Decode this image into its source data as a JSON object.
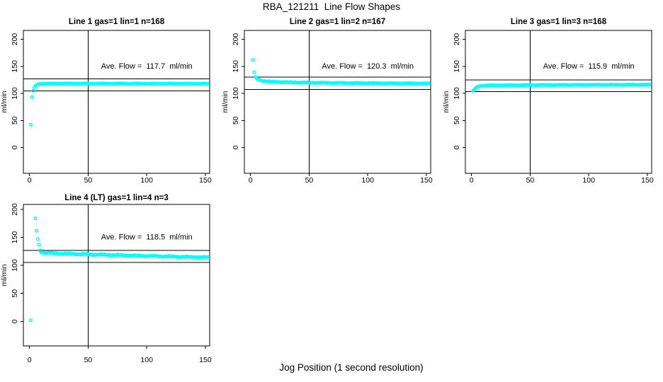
{
  "figure": {
    "main_title": "RBA_121211  Line Flow Shapes",
    "x_axis_label": "Jog Position (1 second resolution)",
    "y_axis_label": "ml/min",
    "point_color": "#00ffff",
    "axis_color": "#000000",
    "bg_color": "#ffffff"
  },
  "chart_data": {
    "type": "scatter",
    "title": "RBA_121211  Line Flow Shapes",
    "xlabel": "Jog Position (1 second resolution)",
    "ylabel": "ml/min",
    "x_ticks": [
      0,
      50,
      100,
      150
    ],
    "y_ticks": [
      0,
      50,
      100,
      150,
      200
    ],
    "xlim": [
      -5,
      155
    ],
    "ylim": [
      -45,
      218
    ],
    "grid": false,
    "marker": "open-circle",
    "panels": [
      {
        "title": "Line 1 gas=1 lin=1 n=168",
        "line": 1,
        "gas": 1,
        "lin": 1,
        "n": 168,
        "ave_flow_ml_min": 117.7,
        "annotation": "Ave. Flow =  117.7  ml/min",
        "vline_x": 50,
        "hline_upper": 126.5,
        "hline_lower": 104.5,
        "isolated_points": [
          [
            1,
            42
          ],
          [
            2,
            93
          ]
        ],
        "curve_points": [
          [
            3,
            105
          ],
          [
            4,
            110
          ],
          [
            5,
            113.5
          ],
          [
            6,
            115.5
          ],
          [
            7,
            116.8
          ],
          [
            9,
            117.6
          ],
          [
            12,
            118
          ],
          [
            20,
            118.2
          ],
          [
            40,
            118.2
          ],
          [
            80,
            118.1
          ],
          [
            120,
            118
          ],
          [
            152,
            117.9
          ]
        ],
        "jitter": 0.5,
        "x_end": 152
      },
      {
        "title": "Line 2 gas=1 lin=2 n=167",
        "line": 2,
        "gas": 1,
        "lin": 2,
        "n": 167,
        "ave_flow_ml_min": 120.3,
        "annotation": "Ave. Flow =  120.3  ml/min",
        "vline_x": 50,
        "hline_upper": 130.0,
        "hline_lower": 107.0,
        "isolated_points": [
          [
            2,
            162
          ],
          [
            3,
            139
          ]
        ],
        "curve_points": [
          [
            4,
            130.5
          ],
          [
            5,
            128
          ],
          [
            6,
            126.5
          ],
          [
            8,
            124.5
          ],
          [
            10,
            123.2
          ],
          [
            14,
            122.2
          ],
          [
            20,
            121.4
          ],
          [
            30,
            120.6
          ],
          [
            50,
            119.8
          ],
          [
            80,
            119.2
          ],
          [
            110,
            118.8
          ],
          [
            152,
            118.4
          ]
        ],
        "jitter": 0.6,
        "x_end": 152
      },
      {
        "title": "Line 3 gas=1 lin=3 n=168",
        "line": 3,
        "gas": 1,
        "lin": 3,
        "n": 168,
        "ave_flow_ml_min": 115.9,
        "annotation": "Ave. Flow =  115.9  ml/min",
        "vline_x": 50,
        "hline_upper": 125.0,
        "hline_lower": 103.5,
        "isolated_points": [],
        "curve_points": [
          [
            1,
            104.5
          ],
          [
            2,
            106
          ],
          [
            3,
            108.5
          ],
          [
            4,
            110.5
          ],
          [
            5,
            112
          ],
          [
            6,
            113
          ],
          [
            8,
            114
          ],
          [
            12,
            114.6
          ],
          [
            20,
            114.9
          ],
          [
            40,
            115.2
          ],
          [
            80,
            115.6
          ],
          [
            120,
            115.9
          ],
          [
            152,
            116.1
          ]
        ],
        "jitter": 0.5,
        "x_end": 152
      },
      {
        "title": "Line 4 (LT) gas=1 lin=4 n=3",
        "line": 4,
        "gas": 1,
        "lin": 4,
        "n": 3,
        "ave_flow_ml_min": 118.5,
        "annotation": "Ave. Flow =  118.5  ml/min",
        "vline_x": 50,
        "hline_upper": 126.5,
        "hline_lower": 105.5,
        "isolated_points": [
          [
            1,
            2
          ],
          [
            5,
            184
          ],
          [
            6,
            162
          ],
          [
            7,
            147
          ],
          [
            8,
            137
          ]
        ],
        "curve_points": [
          [
            9,
            127
          ],
          [
            10,
            124
          ],
          [
            12,
            122.8
          ],
          [
            15,
            122.3
          ],
          [
            20,
            121.8
          ],
          [
            30,
            121
          ],
          [
            40,
            120.4
          ],
          [
            60,
            119.2
          ],
          [
            80,
            118
          ],
          [
            100,
            116.8
          ],
          [
            120,
            115.8
          ],
          [
            135,
            115.1
          ],
          [
            152,
            114.4
          ]
        ],
        "jitter": 1.1,
        "x_end": 152
      }
    ]
  }
}
